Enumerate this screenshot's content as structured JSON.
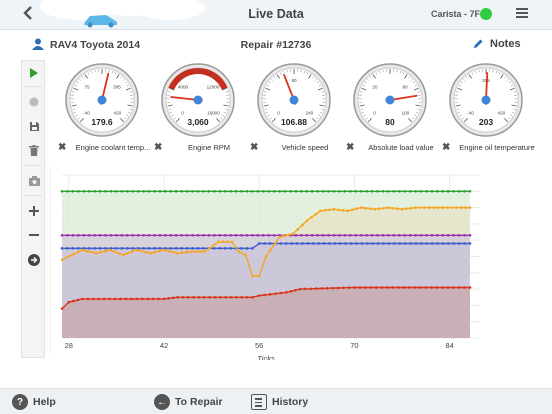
{
  "header": {
    "back_icon": "chevron-left-icon",
    "title": "Live Data",
    "device": "Carista - 7F",
    "status_color": "#2ecc40",
    "menu_icon": "hamburger-menu-icon"
  },
  "subheader": {
    "vehicle": "RAV4 Toyota 2014",
    "repair": "Repair #12736",
    "notes": "Notes"
  },
  "toolbar": {
    "items": [
      "play-icon",
      "record-icon",
      "save-icon",
      "trash-icon",
      "camera-icon",
      "zoom-in-icon",
      "zoom-out-icon",
      "forward-icon"
    ],
    "accent": "#2e9e2e"
  },
  "gauges": [
    {
      "name": "Engine coolant temperature",
      "label": "Engine coolant temp...",
      "value": "179.6",
      "ticks": [
        "-40",
        "75",
        "305",
        "420"
      ],
      "level": 0.55
    },
    {
      "name": "Engine RPM",
      "label": "Engine RPM",
      "value": "3,060",
      "ticks": [
        "0",
        "4000",
        "12000",
        "16000"
      ],
      "level": 0.19
    },
    {
      "name": "Vehicle speed",
      "label": "Vehicle speed",
      "value": "106.88",
      "ticks": [
        "0",
        "80",
        "240"
      ],
      "level": 0.42
    },
    {
      "name": "Absolute load value",
      "label": "Absolute load value",
      "value": "80",
      "ticks": [
        "0",
        "20",
        "80",
        "100"
      ],
      "level": 0.8
    },
    {
      "name": "Engine oil temperature",
      "label": "Engine oil temperature",
      "value": "203",
      "ticks": [
        "-40",
        "305",
        "420"
      ],
      "level": 0.51
    }
  ],
  "chart_data": {
    "type": "line",
    "xlabel": "Ticks",
    "x_ticks": [
      28,
      42,
      56,
      70,
      84
    ],
    "xlim": [
      27,
      87
    ],
    "ylim": [
      0,
      100
    ],
    "grid": true,
    "series": [
      {
        "color": "#2ca02c",
        "values": [
          [
            27,
            90
          ],
          [
            87,
            90
          ]
        ]
      },
      {
        "color": "#9b2fae",
        "values": [
          [
            27,
            63
          ],
          [
            87,
            63
          ]
        ]
      },
      {
        "color": "#3a5fcd",
        "values": [
          [
            27,
            55
          ],
          [
            55,
            55
          ],
          [
            56,
            58
          ],
          [
            87,
            58
          ]
        ]
      },
      {
        "color": "#f5a623",
        "values": [
          [
            27,
            48
          ],
          [
            28,
            50
          ],
          [
            30,
            54
          ],
          [
            32,
            52
          ],
          [
            34,
            54
          ],
          [
            36,
            51
          ],
          [
            38,
            54
          ],
          [
            40,
            52
          ],
          [
            42,
            54
          ],
          [
            44,
            52
          ],
          [
            46,
            53
          ],
          [
            48,
            53
          ],
          [
            50,
            59
          ],
          [
            52,
            59
          ],
          [
            53,
            53
          ],
          [
            54,
            51
          ],
          [
            55,
            38
          ],
          [
            56,
            38
          ],
          [
            57,
            50
          ],
          [
            59,
            62
          ],
          [
            61,
            64
          ],
          [
            63,
            72
          ],
          [
            65,
            78
          ],
          [
            67,
            79
          ],
          [
            69,
            78
          ],
          [
            71,
            80
          ],
          [
            73,
            79
          ],
          [
            75,
            80
          ],
          [
            77,
            79
          ],
          [
            79,
            80
          ],
          [
            81,
            80
          ],
          [
            83,
            80
          ],
          [
            85,
            80
          ],
          [
            87,
            80
          ]
        ]
      },
      {
        "color": "#d9341c",
        "values": [
          [
            27,
            18
          ],
          [
            28,
            22
          ],
          [
            30,
            24
          ],
          [
            42,
            24
          ],
          [
            44,
            25
          ],
          [
            55,
            25
          ],
          [
            56,
            26
          ],
          [
            60,
            28
          ],
          [
            62,
            30
          ],
          [
            70,
            31
          ],
          [
            87,
            31
          ]
        ]
      }
    ]
  },
  "bottombar": {
    "help": "Help",
    "to_repair": "To Repair",
    "history": "History"
  }
}
